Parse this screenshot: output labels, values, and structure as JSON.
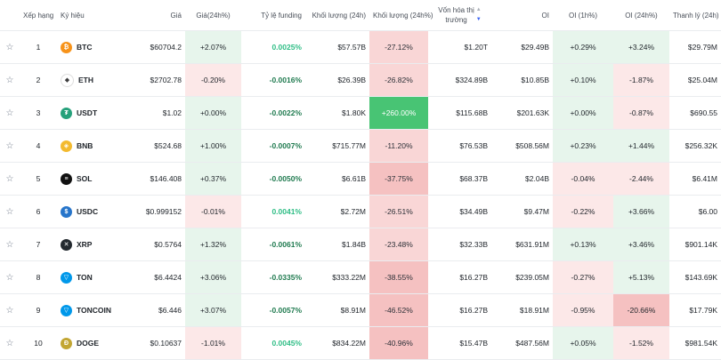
{
  "headers": {
    "rank": "Xếp hạng",
    "symbol": "Ký hiệu",
    "price": "Giá",
    "change": "Giá(24h%)",
    "funding": "Tỷ lệ funding",
    "volume": "Khối lượng (24h)",
    "volume_change": "Khối lượng (24h%)",
    "mcap_line1": "Vốn hóa thị",
    "mcap_line2": "trường",
    "oi": "OI",
    "oi_1h": "OI (1h%)",
    "oi_24h": "OI (24h%)",
    "liq": "Thanh lý (24h)"
  },
  "colors": {
    "bg_pos": "#e7f5ec",
    "bg_neg": "#fce8e8",
    "bg_neg_mid": "#f9d6d6",
    "bg_neg_strong": "#f5c1c1",
    "bg_pos_strong": "#48c474"
  },
  "rows": [
    {
      "rank": "1",
      "symbol": "BTC",
      "icon": "bitcoin-icon",
      "icon_color": "#f7931a",
      "glyph": "₿",
      "price": "$60704.2",
      "change": "+2.07%",
      "change_dir": "pos",
      "funding": "0.0025%",
      "funding_dir": "pos",
      "volume": "$57.57B",
      "vol_change": "-27.12%",
      "vol_level": "neg",
      "mcap": "$1.20T",
      "oi": "$29.49B",
      "oi_1h": "+0.29%",
      "oi_1h_dir": "pos",
      "oi_24h": "+3.24%",
      "oi_24h_dir": "pos",
      "liq": "$29.79M"
    },
    {
      "rank": "2",
      "symbol": "ETH",
      "icon": "ethereum-icon",
      "icon_color": "#ffffff",
      "glyph": "◆",
      "price": "$2702.78",
      "change": "-0.20%",
      "change_dir": "neg",
      "funding": "-0.0016%",
      "funding_dir": "neg",
      "volume": "$26.39B",
      "vol_change": "-26.82%",
      "vol_level": "neg",
      "mcap": "$324.89B",
      "oi": "$10.85B",
      "oi_1h": "+0.10%",
      "oi_1h_dir": "pos",
      "oi_24h": "-1.87%",
      "oi_24h_dir": "neg",
      "liq": "$25.04M"
    },
    {
      "rank": "3",
      "symbol": "USDT",
      "icon": "tether-icon",
      "icon_color": "#26a17b",
      "glyph": "₮",
      "price": "$1.02",
      "change": "+0.00%",
      "change_dir": "pos",
      "funding": "-0.0022%",
      "funding_dir": "neg",
      "volume": "$1.80K",
      "vol_change": "+260.00%",
      "vol_level": "pos_strong",
      "mcap": "$115.68B",
      "oi": "$201.63K",
      "oi_1h": "+0.00%",
      "oi_1h_dir": "pos",
      "oi_24h": "-0.87%",
      "oi_24h_dir": "neg",
      "liq": "$690.55"
    },
    {
      "rank": "4",
      "symbol": "BNB",
      "icon": "bnb-icon",
      "icon_color": "#f3ba2f",
      "glyph": "◈",
      "price": "$524.68",
      "change": "+1.00%",
      "change_dir": "pos",
      "funding": "-0.0007%",
      "funding_dir": "neg",
      "volume": "$715.77M",
      "vol_change": "-11.20%",
      "vol_level": "neg",
      "mcap": "$76.53B",
      "oi": "$508.56M",
      "oi_1h": "+0.23%",
      "oi_1h_dir": "pos",
      "oi_24h": "+1.44%",
      "oi_24h_dir": "pos",
      "liq": "$256.32K"
    },
    {
      "rank": "5",
      "symbol": "SOL",
      "icon": "solana-icon",
      "icon_color": "#111111",
      "glyph": "≡",
      "price": "$146.408",
      "change": "+0.37%",
      "change_dir": "pos",
      "funding": "-0.0050%",
      "funding_dir": "neg",
      "volume": "$6.61B",
      "vol_change": "-37.75%",
      "vol_level": "neg_strong",
      "mcap": "$68.37B",
      "oi": "$2.04B",
      "oi_1h": "-0.04%",
      "oi_1h_dir": "neg",
      "oi_24h": "-2.44%",
      "oi_24h_dir": "neg",
      "liq": "$6.41M"
    },
    {
      "rank": "6",
      "symbol": "USDC",
      "icon": "usdc-icon",
      "icon_color": "#2775ca",
      "glyph": "$",
      "price": "$0.999152",
      "change": "-0.01%",
      "change_dir": "neg",
      "funding": "0.0041%",
      "funding_dir": "pos",
      "volume": "$2.72M",
      "vol_change": "-26.51%",
      "vol_level": "neg",
      "mcap": "$34.49B",
      "oi": "$9.47M",
      "oi_1h": "-0.22%",
      "oi_1h_dir": "neg",
      "oi_24h": "+3.66%",
      "oi_24h_dir": "pos",
      "liq": "$6.00"
    },
    {
      "rank": "7",
      "symbol": "XRP",
      "icon": "xrp-icon",
      "icon_color": "#23292f",
      "glyph": "✕",
      "price": "$0.5764",
      "change": "+1.32%",
      "change_dir": "pos",
      "funding": "-0.0061%",
      "funding_dir": "neg",
      "volume": "$1.84B",
      "vol_change": "-23.48%",
      "vol_level": "neg",
      "mcap": "$32.33B",
      "oi": "$631.91M",
      "oi_1h": "+0.13%",
      "oi_1h_dir": "pos",
      "oi_24h": "+3.46%",
      "oi_24h_dir": "pos",
      "liq": "$901.14K"
    },
    {
      "rank": "8",
      "symbol": "TON",
      "icon": "ton-icon",
      "icon_color": "#0098ea",
      "glyph": "▽",
      "price": "$6.4424",
      "change": "+3.06%",
      "change_dir": "pos",
      "funding": "-0.0335%",
      "funding_dir": "neg",
      "volume": "$333.22M",
      "vol_change": "-38.55%",
      "vol_level": "neg_strong",
      "mcap": "$16.27B",
      "oi": "$239.05M",
      "oi_1h": "-0.27%",
      "oi_1h_dir": "neg",
      "oi_24h": "+5.13%",
      "oi_24h_dir": "pos",
      "liq": "$143.69K"
    },
    {
      "rank": "9",
      "symbol": "TONCOIN",
      "icon": "toncoin-icon",
      "icon_color": "#0098ea",
      "glyph": "▽",
      "price": "$6.446",
      "change": "+3.07%",
      "change_dir": "pos",
      "funding": "-0.0057%",
      "funding_dir": "neg",
      "volume": "$8.91M",
      "vol_change": "-46.52%",
      "vol_level": "neg_strong",
      "mcap": "$16.27B",
      "oi": "$18.91M",
      "oi_1h": "-0.95%",
      "oi_1h_dir": "neg",
      "oi_24h": "-20.66%",
      "oi_24h_dir": "neg_strong",
      "liq": "$17.79K"
    },
    {
      "rank": "10",
      "symbol": "DOGE",
      "icon": "dogecoin-icon",
      "icon_color": "#c2a633",
      "glyph": "Ð",
      "price": "$0.10637",
      "change": "-1.01%",
      "change_dir": "neg",
      "funding": "0.0045%",
      "funding_dir": "pos",
      "volume": "$834.22M",
      "vol_change": "-40.96%",
      "vol_level": "neg_strong",
      "mcap": "$15.47B",
      "oi": "$487.56M",
      "oi_1h": "+0.05%",
      "oi_1h_dir": "pos",
      "oi_24h": "-1.52%",
      "oi_24h_dir": "neg",
      "liq": "$981.54K"
    }
  ]
}
